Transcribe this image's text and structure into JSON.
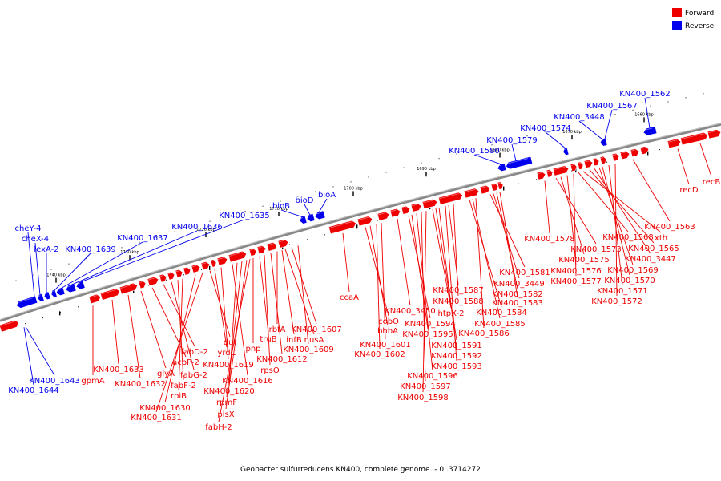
{
  "caption": "Geobacter sulfurreducens KN400, complete genome. - 0..3714272",
  "legend": [
    {
      "label": "Forward",
      "color": "#ee0000"
    },
    {
      "label": "Reverse",
      "color": "#0000ee"
    }
  ],
  "colors": {
    "forward": "#ee0000",
    "reverse": "#0000ee",
    "axis": "#888888"
  },
  "ticks": [
    "1740 kbp",
    "1730 kbp",
    "1720 kbp",
    "1710 kbp",
    "1700 kbp",
    "1690 kbp",
    "1680 kbp",
    "1670 kbp",
    "1660 kbp"
  ],
  "reverse_labels": [
    "cheY-4",
    "cheX-4",
    "lexA-2",
    "KN400_1639",
    "KN400_1637",
    "KN400_1636",
    "KN400_1635",
    "bioB",
    "bioD",
    "bioA",
    "KN400_1580",
    "KN400_1579",
    "KN400_1574",
    "KN400_3448",
    "KN400_1567",
    "KN400_1562",
    "KN400_1643",
    "KN400_1644"
  ],
  "forward_labels": [
    "gpmA",
    "KN400_1633",
    "KN400_1632",
    "glyA",
    "acpP-2",
    "fabD-2",
    "fabG-2",
    "fabF-2",
    "rpiB",
    "KN400_1630",
    "KN400_1631",
    "dut",
    "yrdC",
    "KN400_1619",
    "KN400_1616",
    "KN400_1620",
    "rpmF",
    "plsX",
    "fabH-2",
    "pnp",
    "truB",
    "rpsO",
    "KN400_1612",
    "rbfA",
    "infB",
    "nusA",
    "KN400_1607",
    "KN400_1609",
    "ccaA",
    "cobO",
    "bhbA",
    "KN400_1601",
    "KN400_1602",
    "KN400_3450",
    "KN400_1594",
    "KN400_1595",
    "KN400_1596",
    "KN400_1597",
    "KN400_1598",
    "htpX-2",
    "KN400_1591",
    "KN400_1592",
    "KN400_1593",
    "KN400_1587",
    "KN400_1588",
    "KN400_1584",
    "KN400_1585",
    "KN400_1586",
    "KN400_1581",
    "KN400_3449",
    "KN400_1582",
    "KN400_1583",
    "KN400_1578",
    "KN400_1573",
    "KN400_1575",
    "KN400_1576",
    "KN400_1577",
    "KN400_1568",
    "xth",
    "KN400_1565",
    "KN400_3447",
    "KN400_1569",
    "KN400_1570",
    "KN400_1571",
    "KN400_1572",
    "KN400_1563",
    "recD",
    "recB"
  ]
}
